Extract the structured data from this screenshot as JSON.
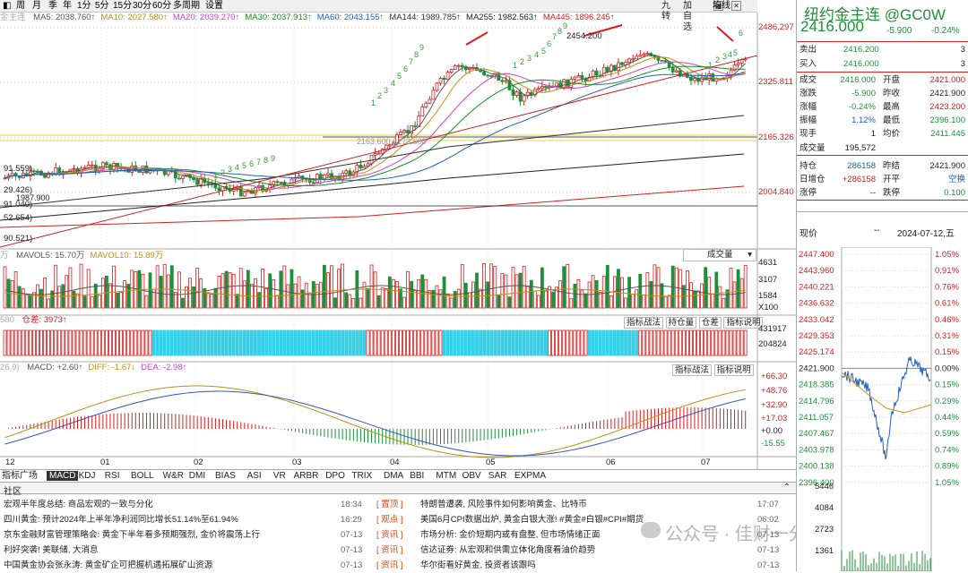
{
  "topbar": {
    "label_left": "周",
    "items": [
      "周",
      "月",
      "季",
      "年",
      "1分",
      "5分",
      "15分",
      "30分",
      "60分",
      "多周期",
      "设置"
    ],
    "right": [
      "九转",
      "加自选"
    ],
    "right_icons": [
      "grid-icon",
      "close-icon"
    ],
    "right_label": "均线"
  },
  "ma_legend": {
    "prefix": "金主连",
    "items": [
      {
        "text": "MA5: 2038.760↑",
        "color": "#555555"
      },
      {
        "text": "MA10: 2027.580↑",
        "color": "#c09010"
      },
      {
        "text": "MA20: 2039.270↑",
        "color": "#d040d0"
      },
      {
        "text": "MA30: 2037.913↑",
        "color": "#109020"
      },
      {
        "text": "MA60: 2043.155↑",
        "color": "#2060c0"
      },
      {
        "text": "MA144: 1989.785↑",
        "color": "#303030"
      },
      {
        "text": "MA255: 1982.563↑",
        "color": "#202020"
      },
      {
        "text": "MA445: 1896.245↑",
        "color": "#d02020"
      }
    ]
  },
  "price_axis": [
    "2486.297",
    "2325.811",
    "2165.326",
    "2004.840"
  ],
  "left_labels": [
    "91.559)",
    "29.426)",
    "1987.900",
    "91.040)",
    "52.654)",
    "90.521)"
  ],
  "annotations": {
    "high": "2454.200",
    "mid_text": "2163.600  2173.600"
  },
  "td_digits": [
    "1",
    "2",
    "3",
    "4",
    "5",
    "6",
    "7",
    "8",
    "9"
  ],
  "vol_legend": {
    "prefix": "万",
    "items": [
      {
        "text": "MAVOL5: 15.70万",
        "color": "#555555"
      },
      {
        "text": "MAVOL10: 15.89万",
        "color": "#c09010"
      }
    ],
    "dropdown": "成交量"
  },
  "vol_axis": [
    "4631",
    "3107",
    "1584",
    "X100"
  ],
  "oi_legend": {
    "left": "580",
    "label": "仓差: 3973↑",
    "buttons": [
      "指标战法",
      "持仓量",
      "仓差",
      "指标说明"
    ]
  },
  "oi_axis": [
    "431917",
    "204824"
  ],
  "macd_legend": {
    "prefix": "26,9)",
    "items": [
      {
        "text": "MACD: +2.60↑",
        "color": "#555555"
      },
      {
        "text": "DIFF: -1.67↓",
        "color": "#c09010"
      },
      {
        "text": "DEA: -2.98↑",
        "color": "#d040d0"
      }
    ],
    "buttons": [
      "指标战法",
      "指标说明"
    ]
  },
  "macd_axis": [
    "+66.30",
    "+48.76",
    "+32.90",
    "+17.03",
    "+0.00",
    "-15.55"
  ],
  "months": [
    "12",
    "01",
    "02",
    "03",
    "04",
    "05",
    "06",
    "07"
  ],
  "indicator_tabs": [
    "指标广场",
    "MACD",
    "KDJ",
    "RSI",
    "BOLL",
    "W&R",
    "DMI",
    "BIAS",
    "ASI",
    "VR",
    "ARBR",
    "DPO",
    "TRIX",
    "DMA",
    "BBI",
    "MTM",
    "OBV",
    "SAR",
    "EXPMA"
  ],
  "community": {
    "label": "社区",
    "icon": "chevron-up-icon"
  },
  "news_left": [
    {
      "title": "宏观半年度总结: 商品宏观的一致与分化",
      "time": "18:34"
    },
    {
      "title": "四川黄金: 预计2024年上半年净利润同比增长51.14%至61.94%",
      "time": "16:29"
    },
    {
      "title": "京东金融财富管理策略会: 黄金下半年看多预期强烈, 金价将震荡上行",
      "time": "07-13"
    },
    {
      "title": "利好突袭! 美联储, 大消息",
      "time": "07-13"
    },
    {
      "title": "中国黄金协会张永涛: 黄金矿企可把握机遇拓展矿山资源",
      "time": "07-13"
    }
  ],
  "news_right": [
    {
      "tag": "置顶",
      "title": "特朗普遭袭, 风险事件如何影响黄金、比特币",
      "time": "17:07"
    },
    {
      "tag": "观点",
      "title": "美国6月CPI数据出炉, 黄金白银大涨! #黄金#白银#CPI#期货",
      "time": "06:02"
    },
    {
      "tag": "资讯",
      "title": "市场分析: 金价短期内或有盘整, 但市场情绪正面",
      "time": "07-13"
    },
    {
      "tag": "资讯",
      "title": "信达证券: 从宏观和供需立体化角度看油价趋势",
      "time": "07-13"
    },
    {
      "tag": "资讯",
      "title": "华尔街看好黄金, 投资者该跟吗",
      "time": "07-13"
    }
  ],
  "watermark": "公众号 · 佳财一分钟",
  "quote": {
    "name": "纽约金主连 @GC0W",
    "price": "2416.000",
    "change": "-5.900",
    "pct": "-0.24%",
    "sell": {
      "label": "卖出",
      "price": "2416.200",
      "qty": "3"
    },
    "buy": {
      "label": "买入",
      "price": "2416.000",
      "qty": "3"
    },
    "rows": [
      {
        "l1": "成交",
        "v1": "2416.000",
        "l2": "开盘",
        "v2": "2421.000",
        "c1": "g",
        "c2": "r"
      },
      {
        "l1": "涨跌",
        "v1": "-5.900",
        "l2": "昨收",
        "v2": "2421.900",
        "c1": "g",
        "c2": ""
      },
      {
        "l1": "涨幅",
        "v1": "-0.24%",
        "l2": "最高",
        "v2": "2423.200",
        "c1": "g",
        "c2": "r"
      },
      {
        "l1": "振幅",
        "v1": "1.12%",
        "l2": "最低",
        "v2": "2396.100",
        "c1": "b",
        "c2": "g"
      },
      {
        "l1": "现手",
        "v1": "1",
        "l2": "均价",
        "v2": "2411.445",
        "c1": "",
        "c2": "g"
      },
      {
        "l1": "成交量",
        "v1": "195,572",
        "l2": "",
        "v2": "",
        "c1": "",
        "c2": ""
      },
      {
        "l1": "持仓",
        "v1": "286158",
        "l2": "昨结",
        "v2": "2421.900",
        "c1": "b",
        "c2": ""
      },
      {
        "l1": "日增仓",
        "v1": "+286158",
        "l2": "开平",
        "v2": "空换",
        "c1": "r",
        "c2": "b"
      },
      {
        "l1": "涨停",
        "v1": "--",
        "l2": "跌停",
        "v2": "0.100",
        "c1": "",
        "c2": "g"
      }
    ],
    "intraday_label": "现价",
    "intraday_dash": "--",
    "intraday_date": "2024-07-12,五",
    "intraday_left": [
      "2447.400",
      "2443.960",
      "2440.221",
      "2436.632",
      "2433.042",
      "2429.353",
      "2425.174",
      "2421.900",
      "2418.385",
      "2414.796",
      "2411.057",
      "2407.467",
      "2403.978",
      "2400.138",
      "2396.400"
    ],
    "intraday_right": [
      "1.05%",
      "0.91%",
      "0.76%",
      "0.61%",
      "0.46%",
      "0.31%",
      "0.15%",
      "0.00%",
      "0.15%",
      "0.29%",
      "0.44%",
      "0.59%",
      "0.74%",
      "0.89%",
      "1.05%"
    ],
    "intraday_vol": [
      "5446",
      "4084",
      "2723",
      "1361"
    ]
  }
}
